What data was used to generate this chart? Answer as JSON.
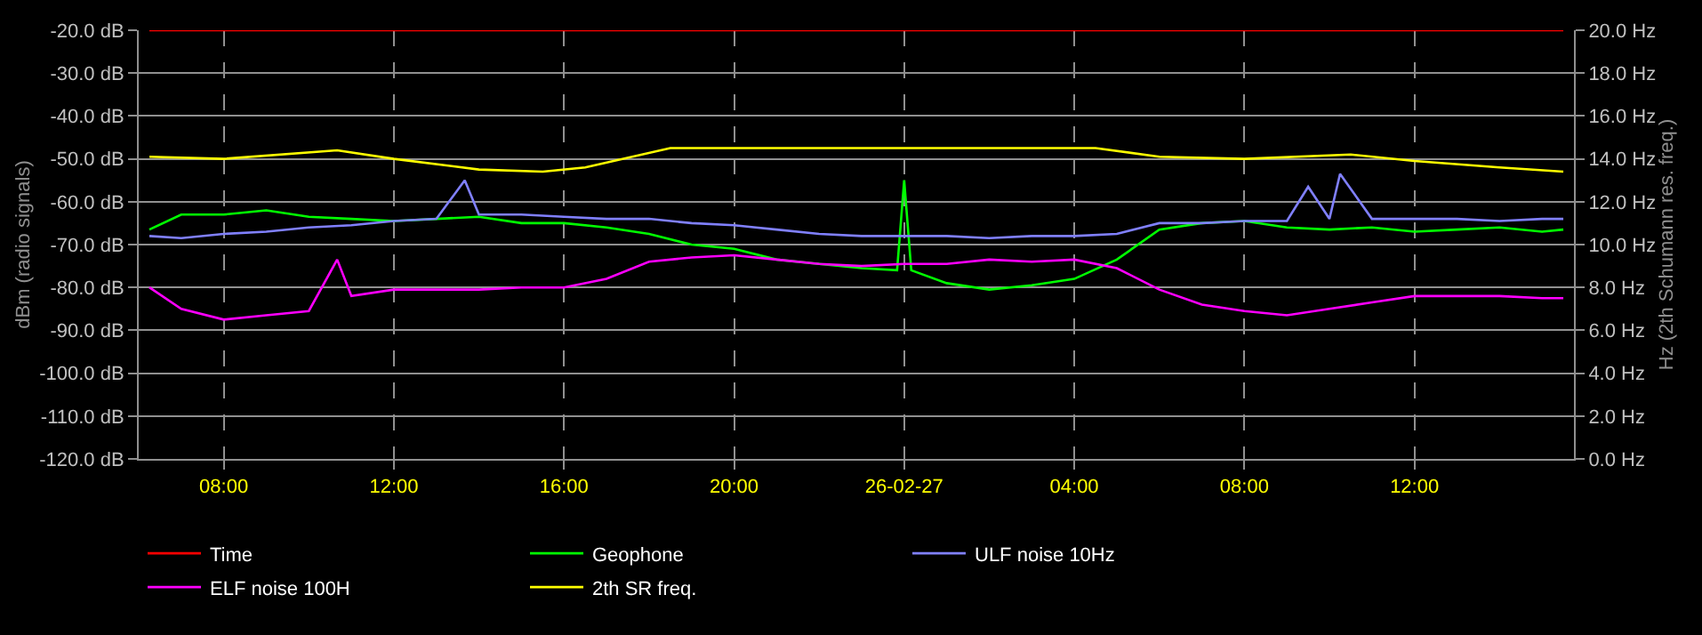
{
  "chart_data": {
    "type": "line",
    "ylabel": "dBm (radio signals)",
    "y2label": "Hz (2th Schumann res. freq.)",
    "xlim": [
      "--02-26T06:00",
      "--02-27T15:45"
    ],
    "xticks": [
      {
        "value": "--02-26T08:00",
        "label": "08:00"
      },
      {
        "value": "--02-26T12:00",
        "label": "12:00"
      },
      {
        "value": "--02-26T16:00",
        "label": "16:00"
      },
      {
        "value": "--02-26T20:00",
        "label": "20:00"
      },
      {
        "value": "--02-27T00:00",
        "label": "26-02-27"
      },
      {
        "value": "--02-27T04:00",
        "label": "04:00"
      },
      {
        "value": "--02-27T08:00",
        "label": "08:00"
      },
      {
        "value": "--02-27T12:00",
        "label": "12:00"
      }
    ],
    "ylim": [
      -120,
      -20
    ],
    "yticks": [
      {
        "value": -120,
        "label": "-120.0 dB"
      },
      {
        "value": -110,
        "label": "-110.0 dB"
      },
      {
        "value": -100,
        "label": "-100.0 dB"
      },
      {
        "value": -90,
        "label": "-90.0 dB"
      },
      {
        "value": -80,
        "label": "-80.0 dB"
      },
      {
        "value": -70,
        "label": "-70.0 dB"
      },
      {
        "value": -60,
        "label": "-60.0 dB"
      },
      {
        "value": -50,
        "label": "-50.0 dB"
      },
      {
        "value": -40,
        "label": "-40.0 dB"
      },
      {
        "value": -30,
        "label": "-30.0 dB"
      },
      {
        "value": -20,
        "label": "-20.0 dB"
      }
    ],
    "y2lim": [
      0,
      20
    ],
    "y2ticks": [
      {
        "value": 0,
        "label": "0.0 Hz"
      },
      {
        "value": 2,
        "label": "2.0 Hz"
      },
      {
        "value": 4,
        "label": "4.0 Hz"
      },
      {
        "value": 6,
        "label": "6.0 Hz"
      },
      {
        "value": 8,
        "label": "8.0 Hz"
      },
      {
        "value": 10,
        "label": "10.0 Hz"
      },
      {
        "value": 12,
        "label": "12.0 Hz"
      },
      {
        "value": 14,
        "label": "14.0 Hz"
      },
      {
        "value": 16,
        "label": "16.0 Hz"
      },
      {
        "value": 18,
        "label": "18.0 Hz"
      },
      {
        "value": 20,
        "label": "20.0 Hz"
      }
    ],
    "grid": true,
    "legend": "bottom",
    "marker": "none",
    "line_style": "solid",
    "series": [
      {
        "name": "Time",
        "color": "#ff0000",
        "x": [
          "--02-26T06:15",
          "--02-27T15:30"
        ],
        "values": [
          -20,
          -20
        ]
      },
      {
        "name": "Geophone",
        "color": "#00ff00",
        "x": [
          "--02-26T06:15",
          "--02-26T07:00",
          "--02-26T08:00",
          "--02-26T09:00",
          "--02-26T10:00",
          "--02-26T11:00",
          "--02-26T12:00",
          "--02-26T13:00",
          "--02-26T14:00",
          "--02-26T15:00",
          "--02-26T16:00",
          "--02-26T17:00",
          "--02-26T18:00",
          "--02-26T19:00",
          "--02-26T20:00",
          "--02-26T21:00",
          "--02-26T22:00",
          "--02-26T23:00",
          "--02-26T23:50",
          "--02-27T00:00",
          "--02-27T00:10",
          "--02-27T01:00",
          "--02-27T02:00",
          "--02-27T03:00",
          "--02-27T04:00",
          "--02-27T05:00",
          "--02-27T06:00",
          "--02-27T07:00",
          "--02-27T08:00",
          "--02-27T09:00",
          "--02-27T10:00",
          "--02-27T11:00",
          "--02-27T12:00",
          "--02-27T13:00",
          "--02-27T14:00",
          "--02-27T15:00",
          "--02-27T15:30"
        ],
        "values": [
          -66.5,
          -63,
          -63,
          -62,
          -63.5,
          -64,
          -64.5,
          -64,
          -63.5,
          -65,
          -65,
          -66,
          -67.5,
          -70,
          -71,
          -73.5,
          -74.5,
          -75.5,
          -76,
          -55,
          -76,
          -79,
          -80.5,
          -79.5,
          -78,
          -73.5,
          -66.5,
          -65,
          -64.5,
          -66,
          -66.5,
          -66,
          -67,
          -66.5,
          -66,
          -67,
          -66.5
        ]
      },
      {
        "name": "ULF noise 10Hz",
        "color": "#8080ff",
        "x": [
          "--02-26T06:15",
          "--02-26T07:00",
          "--02-26T08:00",
          "--02-26T09:00",
          "--02-26T10:00",
          "--02-26T11:00",
          "--02-26T12:00",
          "--02-26T13:00",
          "--02-26T13:40",
          "--02-26T14:00",
          "--02-26T15:00",
          "--02-26T16:00",
          "--02-26T17:00",
          "--02-26T18:00",
          "--02-26T19:00",
          "--02-26T20:00",
          "--02-26T21:00",
          "--02-26T22:00",
          "--02-26T23:00",
          "--02-27T00:00",
          "--02-27T01:00",
          "--02-27T02:00",
          "--02-27T03:00",
          "--02-27T04:00",
          "--02-27T05:00",
          "--02-27T06:00",
          "--02-27T07:00",
          "--02-27T08:00",
          "--02-27T09:00",
          "--02-27T09:30",
          "--02-27T10:00",
          "--02-27T10:15",
          "--02-27T11:00",
          "--02-27T12:00",
          "--02-27T13:00",
          "--02-27T14:00",
          "--02-27T15:00",
          "--02-27T15:30"
        ],
        "values": [
          -68,
          -68.5,
          -67.5,
          -67,
          -66,
          -65.5,
          -64.5,
          -64,
          -55,
          -63,
          -63,
          -63.5,
          -64,
          -64,
          -65,
          -65.5,
          -66.5,
          -67.5,
          -68,
          -68,
          -68,
          -68.5,
          -68,
          -68,
          -67.5,
          -65,
          -65,
          -64.5,
          -64.5,
          -56.5,
          -64,
          -53.5,
          -64,
          -64,
          -64,
          -64.5,
          -64,
          -64
        ]
      },
      {
        "name": "ELF noise 100H",
        "color": "#ff00ff",
        "x": [
          "--02-26T06:15",
          "--02-26T07:00",
          "--02-26T08:00",
          "--02-26T09:00",
          "--02-26T10:00",
          "--02-26T10:40",
          "--02-26T11:00",
          "--02-26T12:00",
          "--02-26T13:00",
          "--02-26T14:00",
          "--02-26T15:00",
          "--02-26T16:00",
          "--02-26T17:00",
          "--02-26T18:00",
          "--02-26T19:00",
          "--02-26T20:00",
          "--02-26T21:00",
          "--02-26T22:00",
          "--02-26T23:00",
          "--02-27T00:00",
          "--02-27T01:00",
          "--02-27T02:00",
          "--02-27T03:00",
          "--02-27T04:00",
          "--02-27T05:00",
          "--02-27T06:00",
          "--02-27T07:00",
          "--02-27T08:00",
          "--02-27T09:00",
          "--02-27T10:00",
          "--02-27T11:00",
          "--02-27T12:00",
          "--02-27T13:00",
          "--02-27T14:00",
          "--02-27T15:00",
          "--02-27T15:30"
        ],
        "values": [
          -80,
          -85,
          -87.5,
          -86.5,
          -85.5,
          -73.5,
          -82,
          -80.5,
          -80.5,
          -80.5,
          -80,
          -80,
          -78,
          -74,
          -73,
          -72.5,
          -73.5,
          -74.5,
          -75,
          -74.5,
          -74.5,
          -73.5,
          -74,
          -73.5,
          -75.5,
          -80.5,
          -84,
          -85.5,
          -86.5,
          -85,
          -83.5,
          -82,
          -82,
          -82,
          -82.5,
          -82.5
        ]
      },
      {
        "name": "2th SR freq.",
        "color": "#ffff00",
        "axis": "y2",
        "x": [
          "--02-26T06:15",
          "--02-26T08:00",
          "--02-26T10:40",
          "--02-26T12:00",
          "--02-26T14:00",
          "--02-26T15:30",
          "--02-26T16:30",
          "--02-26T18:30",
          "--02-26T20:00",
          "--02-27T00:00",
          "--02-27T04:30",
          "--02-27T06:00",
          "--02-27T08:00",
          "--02-27T10:30",
          "--02-27T12:00",
          "--02-27T14:00",
          "--02-27T15:30"
        ],
        "values": [
          14.1,
          14.0,
          14.4,
          14.0,
          13.5,
          13.4,
          13.6,
          14.5,
          14.5,
          14.5,
          14.5,
          14.1,
          14.0,
          14.2,
          13.9,
          13.6,
          13.4
        ]
      }
    ]
  }
}
